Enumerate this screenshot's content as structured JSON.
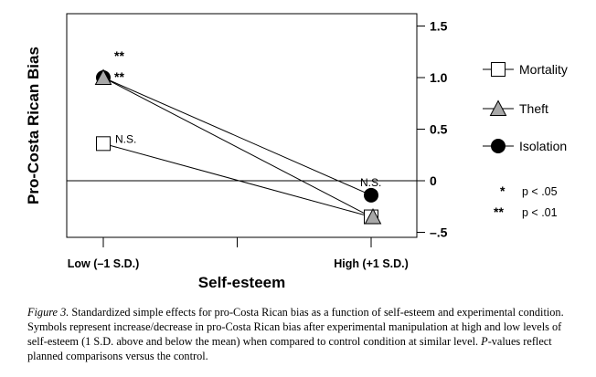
{
  "chart_data": {
    "type": "line",
    "ylabel": "Pro-Costa Rican Bias",
    "xlabel": "Self-esteem",
    "categories": [
      "Low (–1 S.D.)",
      "High (+1 S.D.)"
    ],
    "ylim": [
      -0.5,
      1.5
    ],
    "yticks": [
      {
        "value": 1.5,
        "label": "1.5"
      },
      {
        "value": 1.0,
        "label": "1.0"
      },
      {
        "value": 0.5,
        "label": "0.5"
      },
      {
        "value": 0,
        "label": "0"
      },
      {
        "value": -0.5,
        "label": "–.5"
      }
    ],
    "reference_line": 0,
    "legend_position": "right",
    "series": [
      {
        "name": "Mortality",
        "marker": "square",
        "values": [
          0.36,
          -0.35
        ],
        "annotations": [
          "N.S.",
          ""
        ]
      },
      {
        "name": "Theft",
        "marker": "triangle",
        "values": [
          1.0,
          -0.35
        ],
        "annotations": [
          "**",
          ""
        ]
      },
      {
        "name": "Isolation",
        "marker": "circle",
        "values": [
          1.0,
          -0.14
        ],
        "annotations": [
          "**",
          "N.S."
        ]
      }
    ],
    "significance_notes": [
      {
        "symbol": "*",
        "text": "p < .05"
      },
      {
        "symbol": "**",
        "text": "p < .01"
      }
    ]
  },
  "caption": {
    "figure_label": "Figure 3.",
    "text_part1": " Standardized simple effects for pro-Costa Rican bias as a function of self-esteem and experimental condition. Symbols represent increase/decrease in pro-Costa Rican bias after experimental manipulation at high and low levels of self-esteem (1 S.D. above and below the mean) when compared to control condition at similar level. ",
    "p_italic": "P",
    "text_part2": "-values reflect planned comparisons versus the control."
  },
  "colors": {
    "marker_gray": "#a8a8a8",
    "ink": "#000000"
  }
}
